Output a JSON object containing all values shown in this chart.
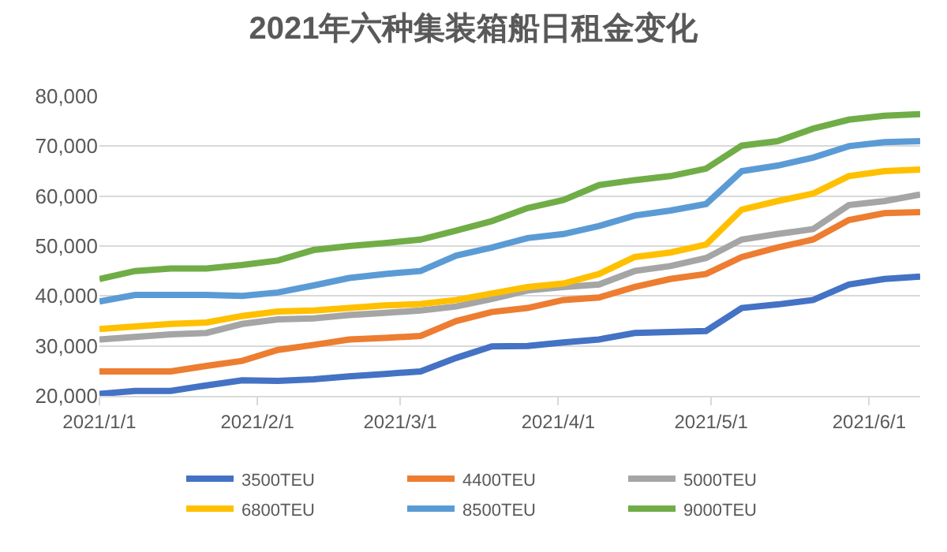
{
  "chart_data": {
    "type": "line",
    "title": "2021年六种集装箱船日租金变化",
    "x": [
      "2021-01-01",
      "2021-01-08",
      "2021-01-15",
      "2021-01-22",
      "2021-01-29",
      "2021-02-05",
      "2021-02-12",
      "2021-02-19",
      "2021-02-26",
      "2021-03-05",
      "2021-03-12",
      "2021-03-19",
      "2021-03-26",
      "2021-04-02",
      "2021-04-09",
      "2021-04-16",
      "2021-04-23",
      "2021-04-30",
      "2021-05-07",
      "2021-05-14",
      "2021-05-21",
      "2021-05-28",
      "2021-06-04",
      "2021-06-11"
    ],
    "series": [
      {
        "name": "3500TEU",
        "color": "#4472c4",
        "values": [
          20400,
          21000,
          21000,
          22100,
          23100,
          23000,
          23300,
          23900,
          24400,
          24900,
          27600,
          29900,
          30000,
          30700,
          31300,
          32600,
          32800,
          33000,
          37600,
          38300,
          39200,
          42300,
          43400,
          43900
        ]
      },
      {
        "name": "4400TEU",
        "color": "#ed7d31",
        "values": [
          24900,
          24900,
          24900,
          26000,
          27000,
          29200,
          30200,
          31300,
          31600,
          32000,
          35000,
          36800,
          37600,
          39200,
          39700,
          41800,
          43400,
          44400,
          47800,
          49700,
          51300,
          55200,
          56600,
          56800
        ]
      },
      {
        "name": "5000TEU",
        "color": "#a5a5a5",
        "values": [
          31300,
          31800,
          32300,
          32600,
          34400,
          35300,
          35500,
          36200,
          36600,
          37100,
          37900,
          39400,
          41100,
          41800,
          42300,
          45000,
          46000,
          47600,
          51300,
          52400,
          53400,
          58200,
          59000,
          60300
        ]
      },
      {
        "name": "6800TEU",
        "color": "#ffc000",
        "values": [
          33400,
          33900,
          34400,
          34700,
          36000,
          36900,
          37100,
          37600,
          38100,
          38400,
          39200,
          40500,
          41800,
          42500,
          44400,
          47800,
          48700,
          50300,
          57300,
          59000,
          60500,
          64000,
          65000,
          65300
        ]
      },
      {
        "name": "8500TEU",
        "color": "#5b9bd5",
        "values": [
          38900,
          40200,
          40200,
          40200,
          40000,
          40700,
          42100,
          43600,
          44400,
          45000,
          48100,
          49700,
          51600,
          52400,
          54000,
          56100,
          57100,
          58400,
          65000,
          66100,
          67700,
          70000,
          70800,
          71000
        ]
      },
      {
        "name": "9000TEU",
        "color": "#70ad47",
        "values": [
          43400,
          45000,
          45500,
          45500,
          46200,
          47100,
          49200,
          50000,
          50600,
          51300,
          53100,
          55000,
          57600,
          59200,
          62200,
          63200,
          64000,
          65500,
          70100,
          71000,
          73500,
          75300,
          76100,
          76400
        ]
      }
    ],
    "xlim": [
      "2021-01-01",
      "2021-06-11"
    ],
    "xticks": [
      {
        "value": "2021-01-01",
        "label": "2021/1/1"
      },
      {
        "value": "2021-02-01",
        "label": "2021/2/1"
      },
      {
        "value": "2021-03-01",
        "label": "2021/3/1"
      },
      {
        "value": "2021-04-01",
        "label": "2021/4/1"
      },
      {
        "value": "2021-05-01",
        "label": "2021/5/1"
      },
      {
        "value": "2021-06-01",
        "label": "2021/6/1"
      }
    ],
    "ylim": [
      20000,
      80000
    ],
    "yticks": [
      {
        "value": 20000,
        "label": "20,000"
      },
      {
        "value": 30000,
        "label": "30,000"
      },
      {
        "value": 40000,
        "label": "40,000"
      },
      {
        "value": 50000,
        "label": "50,000"
      },
      {
        "value": 60000,
        "label": "60,000"
      },
      {
        "value": 70000,
        "label": "70,000"
      },
      {
        "value": 80000,
        "label": "80,000"
      }
    ],
    "grid": "y",
    "legend": "bottom",
    "marker": "none",
    "line_style": "solid"
  }
}
